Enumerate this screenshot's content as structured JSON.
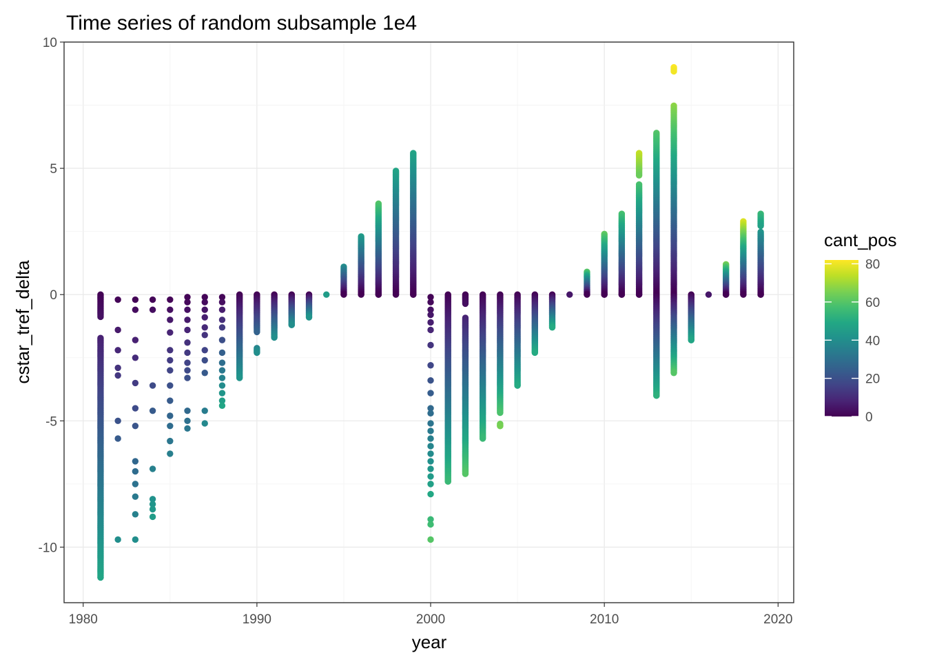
{
  "chart_data": {
    "type": "scatter",
    "title": "Time series of random subsample 1e4",
    "xlabel": "year",
    "ylabel": "cstar_tref_delta",
    "xlim": [
      1978.9,
      2020.9
    ],
    "ylim": [
      -12.2,
      10
    ],
    "x_ticks": [
      1980,
      1990,
      2000,
      2010,
      2020
    ],
    "x_tick_labels": [
      "1980",
      "1990",
      "2000",
      "2010",
      "2020"
    ],
    "y_ticks": [
      -10,
      -5,
      0,
      5,
      10
    ],
    "y_tick_labels": [
      "-10",
      "-5",
      "0",
      "5",
      "10"
    ],
    "grid": true,
    "legend": {
      "title": "cant_pos",
      "position": "right",
      "range": [
        0,
        82
      ],
      "ticks": [
        0,
        20,
        40,
        60,
        80
      ],
      "tick_labels": [
        "0",
        "20",
        "40",
        "60",
        "80"
      ],
      "colormap": "viridis"
    },
    "series": [
      {
        "year": 1981,
        "min": -11.2,
        "max": 0,
        "min_color": 48,
        "max_color": 0,
        "gaps": [
          [
            -0.9,
            -1.7
          ]
        ]
      },
      {
        "year": 1982,
        "min": -9.7,
        "max": 0,
        "min_color": 40,
        "max_color": 0,
        "sparse": [
          -0.2,
          -1.4,
          -2.2,
          -2.9,
          -3.2,
          -5.0,
          -5.7,
          -9.7
        ]
      },
      {
        "year": 1983,
        "min": -9.7,
        "max": 0,
        "min_color": 40,
        "max_color": 0,
        "sparse": [
          -0.2,
          -0.6,
          -1.8,
          -2.5,
          -3.5,
          -4.5,
          -5.2,
          -6.6,
          -7.0,
          -7.5,
          -8.0,
          -8.7,
          -9.7
        ]
      },
      {
        "year": 1984,
        "min": -8.8,
        "max": -0.2,
        "min_color": 45,
        "max_color": 0,
        "sparse": [
          -0.2,
          -0.6,
          -3.6,
          -4.6,
          -6.9,
          -8.1,
          -8.3,
          -8.5,
          -8.8
        ]
      },
      {
        "year": 1985,
        "min": -6.3,
        "max": 0,
        "min_color": 35,
        "max_color": 0,
        "sparse": [
          -0.2,
          -0.6,
          -1.0,
          -1.5,
          -2.2,
          -2.6,
          -3.0,
          -3.6,
          -4.2,
          -4.8,
          -5.2,
          -5.8,
          -6.3
        ]
      },
      {
        "year": 1986,
        "min": -5.3,
        "max": 0,
        "min_color": 32,
        "max_color": 0,
        "sparse": [
          -0.1,
          -0.3,
          -0.6,
          -1.0,
          -1.4,
          -1.9,
          -2.3,
          -2.7,
          -3.0,
          -3.3,
          -4.6,
          -5.0,
          -5.3
        ]
      },
      {
        "year": 1987,
        "min": -5.1,
        "max": 0,
        "min_color": 38,
        "max_color": 0,
        "sparse": [
          -0.1,
          -0.3,
          -0.6,
          -0.9,
          -1.3,
          -1.6,
          -2.2,
          -2.6,
          -3.1,
          -4.6,
          -5.1
        ]
      },
      {
        "year": 1988,
        "min": -4.4,
        "max": 0,
        "min_color": 48,
        "max_color": 0,
        "sparse": [
          -0.1,
          -0.3,
          -0.6,
          -1.0,
          -1.3,
          -1.8,
          -2.3,
          -2.7,
          -3.0,
          -3.3,
          -3.6,
          -3.9,
          -4.2,
          -4.4
        ]
      },
      {
        "year": 1989,
        "min": -3.3,
        "max": 0,
        "min_color": 42,
        "max_color": 0
      },
      {
        "year": 1990,
        "min": -2.3,
        "max": 0,
        "min_color": 40,
        "max_color": 0,
        "gaps": [
          [
            -1.5,
            -2.1
          ]
        ]
      },
      {
        "year": 1991,
        "min": -1.7,
        "max": 0,
        "min_color": 40,
        "max_color": 0
      },
      {
        "year": 1992,
        "min": -1.2,
        "max": 0,
        "min_color": 40,
        "max_color": 0
      },
      {
        "year": 1993,
        "min": -0.9,
        "max": 0,
        "min_color": 42,
        "max_color": 0
      },
      {
        "year": 1994,
        "min": 0,
        "max": 0,
        "min_color": 45,
        "max_color": 45
      },
      {
        "year": 1995,
        "min": 0,
        "max": 1.1,
        "min_color": 0,
        "max_color": 40
      },
      {
        "year": 1996,
        "min": 0,
        "max": 2.3,
        "min_color": 0,
        "max_color": 45
      },
      {
        "year": 1997,
        "min": 0,
        "max": 3.6,
        "min_color": 0,
        "max_color": 60
      },
      {
        "year": 1998,
        "min": 0,
        "max": 4.9,
        "min_color": 0,
        "max_color": 48
      },
      {
        "year": 1999,
        "min": 0,
        "max": 5.6,
        "min_color": 0,
        "max_color": 48
      },
      {
        "year": 2000,
        "min": -9.7,
        "max": 0,
        "min_color": 60,
        "max_color": 0,
        "sparse": [
          -0.1,
          -0.3,
          -0.6,
          -0.8,
          -1.1,
          -1.4,
          -2.0,
          -2.8,
          -3.4,
          -3.9,
          -4.5,
          -4.7,
          -5.1,
          -5.4,
          -5.7,
          -6.0,
          -6.3,
          -6.6,
          -6.9,
          -7.2,
          -7.5,
          -7.9,
          -8.9,
          -9.1,
          -9.7
        ]
      },
      {
        "year": 2001,
        "min": -7.4,
        "max": 0,
        "min_color": 55,
        "max_color": 0
      },
      {
        "year": 2002,
        "min": -7.1,
        "max": 0,
        "min_color": 60,
        "max_color": 0,
        "gaps": [
          [
            -0.4,
            -0.9
          ]
        ]
      },
      {
        "year": 2003,
        "min": -5.7,
        "max": 0,
        "min_color": 55,
        "max_color": 0
      },
      {
        "year": 2004,
        "min": -5.2,
        "max": 0,
        "min_color": 65,
        "max_color": 0,
        "gaps": [
          [
            -4.7,
            -5.1
          ]
        ]
      },
      {
        "year": 2005,
        "min": -3.6,
        "max": 0,
        "min_color": 50,
        "max_color": 0
      },
      {
        "year": 2006,
        "min": -2.3,
        "max": 0,
        "min_color": 50,
        "max_color": 0
      },
      {
        "year": 2007,
        "min": -1.3,
        "max": 0,
        "min_color": 50,
        "max_color": 0
      },
      {
        "year": 2008,
        "min": 0,
        "max": 0,
        "min_color": 5,
        "max_color": 5
      },
      {
        "year": 2009,
        "min": 0,
        "max": 0.9,
        "min_color": 0,
        "max_color": 60
      },
      {
        "year": 2010,
        "min": 0,
        "max": 2.4,
        "min_color": 0,
        "max_color": 62
      },
      {
        "year": 2011,
        "min": 0,
        "max": 3.2,
        "min_color": 0,
        "max_color": 58
      },
      {
        "year": 2012,
        "min": 0,
        "max": 5.6,
        "min_color": 0,
        "max_color": 75,
        "gaps": [
          [
            4.4,
            4.7
          ]
        ]
      },
      {
        "year": 2013,
        "min": -4.0,
        "max": 6.4,
        "min_color": 52,
        "max_color": 60
      },
      {
        "year": 2014,
        "min": -3.1,
        "max": 9.0,
        "min_color": 60,
        "max_color": 82,
        "gaps": [
          [
            7.5,
            8.8
          ]
        ]
      },
      {
        "year": 2015,
        "min": -1.8,
        "max": 0,
        "min_color": 48,
        "max_color": 0
      },
      {
        "year": 2016,
        "min": 0,
        "max": 0,
        "min_color": 5,
        "max_color": 5
      },
      {
        "year": 2017,
        "min": 0,
        "max": 1.2,
        "min_color": 0,
        "max_color": 65
      },
      {
        "year": 2018,
        "min": 0,
        "max": 2.9,
        "min_color": 0,
        "max_color": 78
      },
      {
        "year": 2019,
        "min": 0,
        "max": 3.2,
        "min_color": 0,
        "max_color": 55,
        "gaps": [
          [
            2.5,
            2.7
          ]
        ]
      }
    ]
  }
}
